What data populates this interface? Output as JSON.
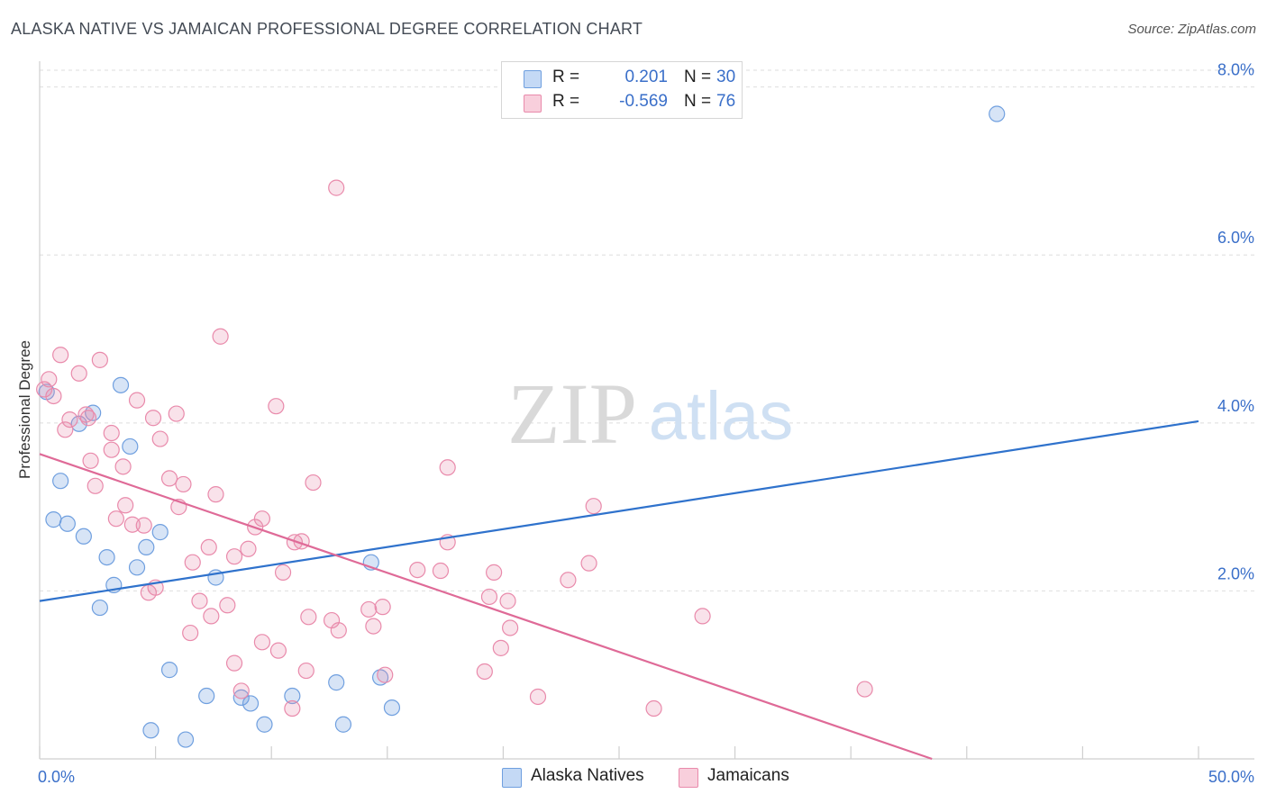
{
  "title": "ALASKA NATIVE VS JAMAICAN PROFESSIONAL DEGREE CORRELATION CHART",
  "source": "Source: ZipAtlas.com",
  "watermark": {
    "zip": "ZIP",
    "atlas": "atlas"
  },
  "legend": {
    "rows": [
      {
        "r_label": "R =",
        "r_value": "0.201",
        "n_label": "N =",
        "n_value": "30",
        "color": "#6f9fdf"
      },
      {
        "r_label": "R =",
        "r_value": "-0.569",
        "n_label": "N =",
        "n_value": "76",
        "color": "#e98aab"
      }
    ]
  },
  "bottom_legend": [
    {
      "label": "Alaska Natives",
      "color": "#6f9fdf"
    },
    {
      "label": "Jamaicans",
      "color": "#e98aab"
    }
  ],
  "chart_data": {
    "type": "scatter",
    "title": "ALASKA NATIVE VS JAMAICAN PROFESSIONAL DEGREE CORRELATION CHART",
    "xlabel": "",
    "ylabel": "Professional Degree",
    "xlim": [
      0,
      50
    ],
    "ylim": [
      0,
      8.2
    ],
    "x_tick_labels": [
      {
        "value": 0,
        "label": "0.0%"
      },
      {
        "value": 50,
        "label": "50.0%"
      }
    ],
    "y_tick_labels": [
      {
        "value": 2,
        "label": "2.0%"
      },
      {
        "value": 4,
        "label": "4.0%"
      },
      {
        "value": 6,
        "label": "6.0%"
      },
      {
        "value": 8,
        "label": "8.0%"
      }
    ],
    "x_minor_ticks": [
      0,
      5,
      10,
      15,
      20,
      25,
      30,
      35,
      40,
      45,
      50
    ],
    "series": [
      {
        "name": "Alaska Natives",
        "color": "#6f9fdf",
        "points": [
          [
            0.3,
            4.37
          ],
          [
            1.7,
            3.99
          ],
          [
            2.3,
            4.12
          ],
          [
            3.5,
            4.45
          ],
          [
            3.9,
            3.72
          ],
          [
            0.9,
            3.31
          ],
          [
            0.6,
            2.85
          ],
          [
            1.2,
            2.8
          ],
          [
            1.9,
            2.65
          ],
          [
            2.9,
            2.4
          ],
          [
            4.6,
            2.52
          ],
          [
            5.2,
            2.7
          ],
          [
            4.2,
            2.28
          ],
          [
            3.2,
            2.07
          ],
          [
            2.6,
            1.8
          ],
          [
            7.6,
            2.16
          ],
          [
            14.3,
            2.34
          ],
          [
            5.6,
            1.06
          ],
          [
            7.2,
            0.75
          ],
          [
            8.7,
            0.73
          ],
          [
            9.1,
            0.66
          ],
          [
            10.9,
            0.75
          ],
          [
            12.8,
            0.91
          ],
          [
            14.7,
            0.97
          ],
          [
            9.7,
            0.41
          ],
          [
            13.1,
            0.41
          ],
          [
            15.2,
            0.61
          ],
          [
            4.8,
            0.34
          ],
          [
            6.3,
            0.23
          ],
          [
            41.3,
            7.68
          ]
        ],
        "trend": {
          "x": [
            0,
            50
          ],
          "y": [
            1.88,
            4.02
          ]
        }
      },
      {
        "name": "Jamaicans",
        "color": "#e98aab",
        "points": [
          [
            0.4,
            4.52
          ],
          [
            0.6,
            4.32
          ],
          [
            0.9,
            4.81
          ],
          [
            1.7,
            4.59
          ],
          [
            2.6,
            4.75
          ],
          [
            1.3,
            4.04
          ],
          [
            2.1,
            4.06
          ],
          [
            2.0,
            4.1
          ],
          [
            1.1,
            3.92
          ],
          [
            4.2,
            4.27
          ],
          [
            5.9,
            4.11
          ],
          [
            4.9,
            4.06
          ],
          [
            10.2,
            4.2
          ],
          [
            7.8,
            5.03
          ],
          [
            12.8,
            6.8
          ],
          [
            2.2,
            3.55
          ],
          [
            2.4,
            3.25
          ],
          [
            3.1,
            3.88
          ],
          [
            3.1,
            3.68
          ],
          [
            3.6,
            3.48
          ],
          [
            5.2,
            3.81
          ],
          [
            5.6,
            3.34
          ],
          [
            6.2,
            3.27
          ],
          [
            7.6,
            3.15
          ],
          [
            11.8,
            3.29
          ],
          [
            17.6,
            3.47
          ],
          [
            23.9,
            3.01
          ],
          [
            3.7,
            3.02
          ],
          [
            3.3,
            2.86
          ],
          [
            4.0,
            2.79
          ],
          [
            4.5,
            2.78
          ],
          [
            6.0,
            3.0
          ],
          [
            9.3,
            2.76
          ],
          [
            9.6,
            2.86
          ],
          [
            11.0,
            2.58
          ],
          [
            11.3,
            2.59
          ],
          [
            17.6,
            2.58
          ],
          [
            7.3,
            2.52
          ],
          [
            8.4,
            2.41
          ],
          [
            9.0,
            2.5
          ],
          [
            6.6,
            2.34
          ],
          [
            10.5,
            2.22
          ],
          [
            16.3,
            2.25
          ],
          [
            17.3,
            2.24
          ],
          [
            19.6,
            2.22
          ],
          [
            22.8,
            2.13
          ],
          [
            23.7,
            2.33
          ],
          [
            5.0,
            2.04
          ],
          [
            4.7,
            1.98
          ],
          [
            6.9,
            1.88
          ],
          [
            8.1,
            1.83
          ],
          [
            14.2,
            1.78
          ],
          [
            14.8,
            1.81
          ],
          [
            19.4,
            1.93
          ],
          [
            20.2,
            1.88
          ],
          [
            7.4,
            1.7
          ],
          [
            11.6,
            1.69
          ],
          [
            12.6,
            1.65
          ],
          [
            12.9,
            1.53
          ],
          [
            14.4,
            1.58
          ],
          [
            20.3,
            1.56
          ],
          [
            28.6,
            1.7
          ],
          [
            6.5,
            1.5
          ],
          [
            9.6,
            1.39
          ],
          [
            10.3,
            1.29
          ],
          [
            19.9,
            1.32
          ],
          [
            8.4,
            1.14
          ],
          [
            11.5,
            1.05
          ],
          [
            14.9,
            1.0
          ],
          [
            19.2,
            1.04
          ],
          [
            8.7,
            0.81
          ],
          [
            10.9,
            0.6
          ],
          [
            21.5,
            0.74
          ],
          [
            26.5,
            0.6
          ],
          [
            35.6,
            0.83
          ],
          [
            0.2,
            4.4
          ]
        ],
        "trend": {
          "x": [
            0,
            38.5
          ],
          "y": [
            3.63,
            0
          ]
        }
      }
    ]
  }
}
